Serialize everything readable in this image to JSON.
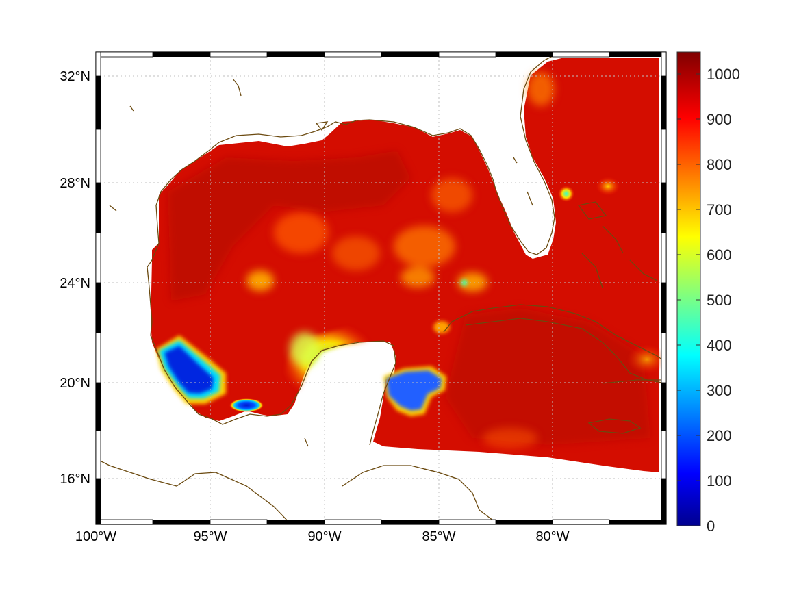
{
  "map": {
    "x_axis": {
      "ticks": [
        "100°W",
        "95°W",
        "90°W",
        "85°W",
        "80°W"
      ],
      "range_lon": [
        -100,
        -75
      ]
    },
    "y_axis": {
      "ticks": [
        "32°N",
        "28°N",
        "24°N",
        "20°N",
        "16°N"
      ],
      "range_lat": [
        14.2,
        33
      ]
    },
    "grid": "dotted",
    "frame_style": "black-white checkered border",
    "coastline_color": "#6b4a10",
    "field": {
      "dominant_value_range": [
        900,
        1050
      ],
      "features": [
        {
          "region": "Bay of Campeche (west)",
          "approx_value": 150
        },
        {
          "region": "Bay of Campeche (south)",
          "approx_value": 250
        },
        {
          "region": "Yucatan north shelf",
          "approx_value": 650
        },
        {
          "region": "Yucatan Channel east",
          "approx_value": 250
        },
        {
          "region": "east of Florida",
          "approx_value": 550
        },
        {
          "region": "Bahamas",
          "approx_value": 750
        },
        {
          "region": "central Gulf patches",
          "approx_value": 850
        }
      ]
    }
  },
  "colorbar": {
    "min": 0,
    "max": 1050,
    "ticks": [
      "1000",
      "900",
      "800",
      "700",
      "600",
      "500",
      "400",
      "300",
      "200",
      "100",
      "0"
    ],
    "colormap": "jet"
  }
}
